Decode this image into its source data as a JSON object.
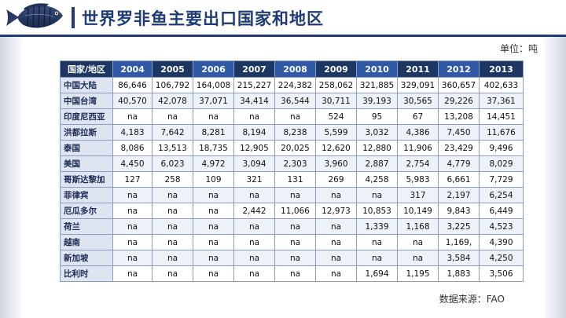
{
  "header": {
    "title": "世界罗非鱼主要出口国家和地区",
    "logo_icon": "tilapia-fish-icon"
  },
  "unit_label": "单位：吨",
  "source_label": "数据来源：FAO",
  "colors": {
    "brand_navy": "#1f3c78",
    "header_dark": "#1c3764",
    "header_blue": "#2e5aa7",
    "country_cell_bg": "#dfe5f0"
  },
  "table": {
    "corner_label": "国家/地区",
    "years": [
      "2004",
      "2005",
      "2006",
      "2007",
      "2008",
      "2009",
      "2010",
      "2011",
      "2012",
      "2013"
    ],
    "rows": [
      {
        "country": "中国大陆",
        "values": [
          "86,646",
          "106,792",
          "164,008",
          "215,227",
          "224,382",
          "258,062",
          "321,885",
          "329,091",
          "360,657",
          "402,633"
        ]
      },
      {
        "country": "中国台湾",
        "values": [
          "40,570",
          "42,078",
          "37,071",
          "34,414",
          "36,544",
          "30,711",
          "39,193",
          "30,565",
          "29,226",
          "37,361"
        ]
      },
      {
        "country": "印度尼西亚",
        "values": [
          "na",
          "na",
          "na",
          "na",
          "na",
          "524",
          "95",
          "67",
          "13,208",
          "14,451"
        ]
      },
      {
        "country": "洪都拉斯",
        "values": [
          "4,183",
          "7,642",
          "8,281",
          "8,194",
          "8,238",
          "5,599",
          "3,032",
          "4,386",
          "7,450",
          "11,676"
        ]
      },
      {
        "country": "泰国",
        "values": [
          "8,086",
          "13,513",
          "18,735",
          "12,905",
          "20,025",
          "12,620",
          "12,880",
          "11,906",
          "23,429",
          "9,496"
        ]
      },
      {
        "country": "美国",
        "values": [
          "4,450",
          "6,023",
          "4,972",
          "3,094",
          "2,303",
          "3,960",
          "2,887",
          "2,754",
          "4,779",
          "8,029"
        ]
      },
      {
        "country": "哥斯达黎加",
        "values": [
          "127",
          "258",
          "109",
          "321",
          "131",
          "269",
          "4,258",
          "5,983",
          "6,661",
          "7,729"
        ]
      },
      {
        "country": "菲律宾",
        "values": [
          "na",
          "na",
          "na",
          "na",
          "na",
          "na",
          "na",
          "317",
          "2,197",
          "6,254"
        ]
      },
      {
        "country": "厄瓜多尔",
        "values": [
          "na",
          "na",
          "na",
          "2,442",
          "11,066",
          "12,973",
          "10,853",
          "10,149",
          "9,843",
          "6,449"
        ]
      },
      {
        "country": "荷兰",
        "values": [
          "na",
          "na",
          "na",
          "na",
          "na",
          "na",
          "1,339",
          "1,168",
          "3,225",
          "4,523"
        ]
      },
      {
        "country": "越南",
        "values": [
          "na",
          "na",
          "na",
          "na",
          "na",
          "na",
          "na",
          "na",
          "1,169,",
          "4,390"
        ]
      },
      {
        "country": "新加坡",
        "values": [
          "na",
          "na",
          "na",
          "na",
          "na",
          "na",
          "na",
          "na",
          "3,584",
          "4,250"
        ]
      },
      {
        "country": "比利时",
        "values": [
          "na",
          "na",
          "na",
          "na",
          "na",
          "na",
          "1,694",
          "1,195",
          "1,883",
          "3,506"
        ]
      }
    ]
  }
}
